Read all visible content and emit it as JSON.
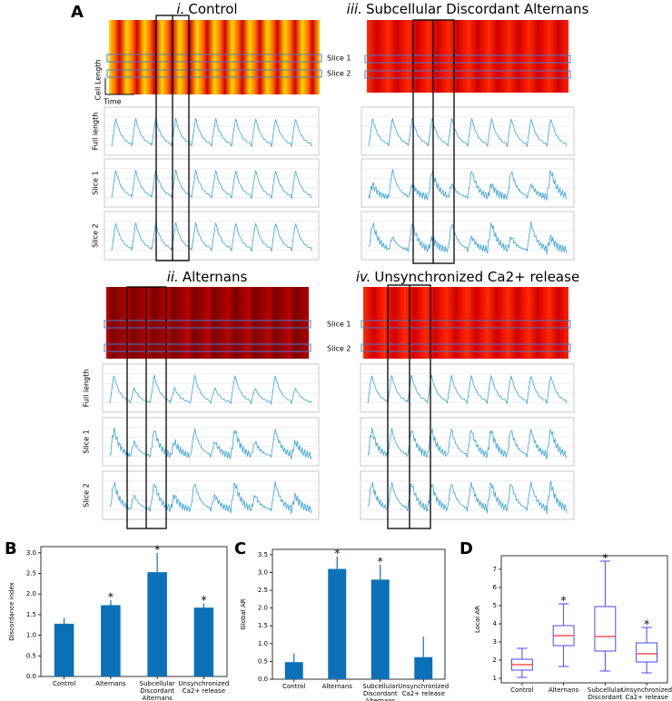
{
  "panel_a": {
    "label": "A",
    "panels": [
      {
        "numeral": "i.",
        "title": "Control",
        "row_labels": [
          "Full length",
          "Slice 1",
          "Slice 2"
        ]
      },
      {
        "numeral": "iii.",
        "title": "Subcellular Discordant Alternans"
      },
      {
        "numeral": "ii.",
        "title": "Alternans",
        "row_labels": [
          "Full length",
          "Slice 1",
          "Slice 2"
        ]
      },
      {
        "numeral": "iv.",
        "title": "Unsynchronized Ca2+ release"
      }
    ],
    "slice_labels_top": [
      "Slice 1",
      "Slice 2"
    ],
    "slice_labels_bottom": [
      "Slice 1",
      "Slice 2"
    ],
    "scale_y_label": "Cell Length",
    "scale_x_label": "Time"
  },
  "chart_data": [
    {
      "type": "bar",
      "label": "B",
      "ylabel": "Discordance index",
      "color": "#0b70b8",
      "categories": [
        "Control",
        "Alternans",
        "Subcellular\nDiscordant\nAlternans",
        "Unsynchronized\nCa2+ release"
      ],
      "values": [
        1.28,
        1.73,
        2.53,
        1.67
      ],
      "errors": [
        0.14,
        0.12,
        0.47,
        0.1
      ],
      "significance": [
        {
          "index": 1,
          "text": "*"
        },
        {
          "index": 2,
          "text": "*"
        },
        {
          "index": 3,
          "text": "*"
        }
      ],
      "ylim": [
        0,
        3.15
      ],
      "yticks": [
        {
          "value": 0,
          "label": "0.0"
        },
        0.5,
        {
          "value": 1,
          "label": "1.0"
        },
        1.5,
        {
          "value": 2,
          "label": "2.0"
        },
        2.5,
        {
          "value": 3,
          "label": "3.0"
        }
      ]
    },
    {
      "type": "bar",
      "label": "C",
      "ylabel": "Global AR",
      "color": "#0b70b8",
      "categories": [
        "Control",
        "Alternans",
        "Subcellular\nDiscordant\nAlternans",
        "Unsynchronized\nCa2+ release"
      ],
      "values": [
        0.48,
        3.1,
        2.8,
        0.62
      ],
      "errors": [
        0.25,
        0.35,
        0.42,
        0.58
      ],
      "significance": [
        {
          "index": 1,
          "text": "*"
        },
        {
          "index": 2,
          "text": "*"
        }
      ],
      "ylim": [
        0,
        3.65
      ],
      "yticks": [
        {
          "value": 0,
          "label": "0.0"
        },
        0.5,
        {
          "value": 1,
          "label": "1.0"
        },
        1.5,
        {
          "value": 2,
          "label": "2.0"
        },
        2.5,
        {
          "value": 3,
          "label": "3.0"
        },
        3.5
      ]
    },
    {
      "type": "box",
      "label": "D",
      "ylabel": "Local AR",
      "color": "#3333ff",
      "median_color": "#ff3333",
      "categories": [
        "Control",
        "Alternans",
        "Subcellular\nDiscordant\nAlternans",
        "Unsynchronized\nCa2+ release"
      ],
      "boxes": [
        {
          "min": 1.05,
          "q1": 1.45,
          "median": 1.75,
          "q3": 2.05,
          "max": 2.65
        },
        {
          "min": 1.65,
          "q1": 2.8,
          "median": 3.35,
          "q3": 3.9,
          "max": 5.1
        },
        {
          "min": 1.4,
          "q1": 2.5,
          "median": 3.3,
          "q3": 4.95,
          "max": 7.45
        },
        {
          "min": 1.3,
          "q1": 1.9,
          "median": 2.35,
          "q3": 2.95,
          "max": 3.8
        }
      ],
      "significance": [
        {
          "index": 1,
          "text": "*"
        },
        {
          "index": 2,
          "text": "*"
        },
        {
          "index": 3,
          "text": "*"
        }
      ],
      "ylim": [
        0.75,
        7.75
      ],
      "yticks": [
        1,
        2,
        3,
        4,
        5,
        6,
        7
      ]
    }
  ]
}
